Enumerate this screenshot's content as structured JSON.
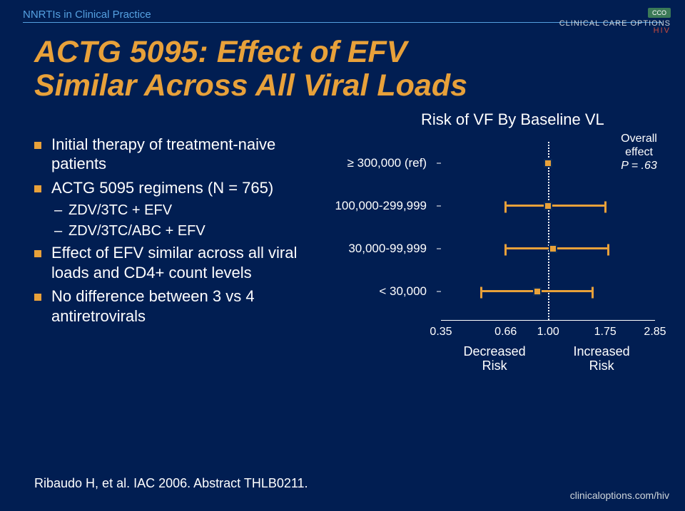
{
  "header": {
    "label": "NNRTIs in Clinical Practice",
    "logo_org": "CLINICAL CARE OPTIONS",
    "logo_sub": "HIV",
    "logo_badge": "CCO"
  },
  "title_line1": "ACTG 5095: Effect of EFV",
  "title_line2": "Similar Across All Viral Loads",
  "chart_title": "Risk of VF By Baseline VL",
  "bullets": {
    "b1": "Initial therapy of treatment-naive patients",
    "b2": "ACTG 5095 regimens (N = 765)",
    "b2a": "ZDV/3TC + EFV",
    "b2b": "ZDV/3TC/ABC + EFV",
    "b3": "Effect of EFV similar across all viral loads and CD4+ count levels",
    "b4": "No difference between 3 vs 4 antiretrovirals"
  },
  "forest": {
    "ref_value": 1.0,
    "xmin": 0.35,
    "xmax": 2.85,
    "line_color": "#e8a13a",
    "xticks": [
      {
        "v": 0.35,
        "label": "0.35"
      },
      {
        "v": 0.66,
        "label": "0.66"
      },
      {
        "v": 1.0,
        "label": "1.00"
      },
      {
        "v": 1.75,
        "label": "1.75"
      },
      {
        "v": 2.85,
        "label": "2.85"
      }
    ],
    "rows": [
      {
        "label": "≥ 300,000 (ref)",
        "point": 1.0,
        "low": null,
        "high": null
      },
      {
        "label": "100,000-299,999",
        "point": 1.0,
        "low": 0.66,
        "high": 1.75
      },
      {
        "label": "30,000-99,999",
        "point": 1.05,
        "low": 0.66,
        "high": 1.8
      },
      {
        "label": "< 30,000",
        "point": 0.9,
        "low": 0.52,
        "high": 1.55
      }
    ],
    "overall_label": "Overall effect",
    "overall_p": "P = .63",
    "decreased": "Decreased Risk",
    "increased": "Increased Risk"
  },
  "citation": "Ribaudo H, et al. IAC 2006. Abstract THLB0211.",
  "footer_link": "clinicaloptions.com/hiv"
}
